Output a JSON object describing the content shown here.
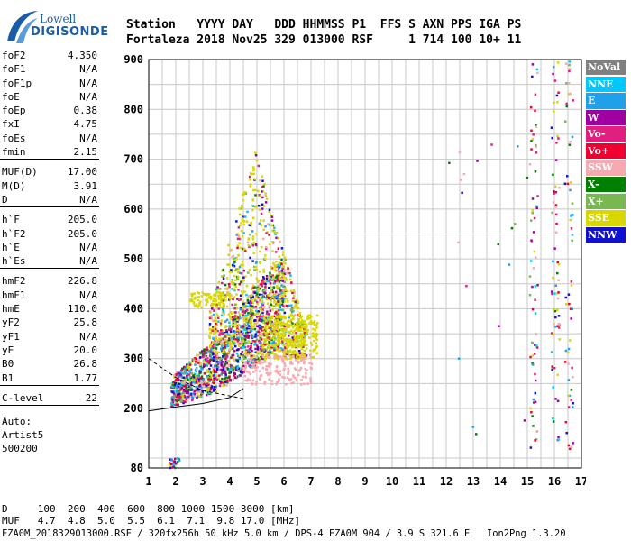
{
  "logo": {
    "line1": "Lowell",
    "line2": "DIGISONDE"
  },
  "header": {
    "line1": "Station   YYYY DAY   DDD HHMMSS P1  FFS S AXN PPS IGA PS",
    "line2": "Fortaleza 2018 Nov25 329 013000 RSF     1 714 100 10+ 11"
  },
  "params": [
    {
      "k": "foF2",
      "v": "4.350"
    },
    {
      "k": "foF1",
      "v": "N/A"
    },
    {
      "k": "foF1p",
      "v": "N/A"
    },
    {
      "k": "foE",
      "v": "N/A"
    },
    {
      "k": "foEp",
      "v": "0.38"
    },
    {
      "k": "fxI",
      "v": "4.75"
    },
    {
      "k": "foEs",
      "v": "N/A"
    },
    {
      "k": "fmin",
      "v": "2.15"
    },
    {
      "sep": true
    },
    {
      "k": "MUF(D)",
      "v": "17.00"
    },
    {
      "k": "M(D)",
      "v": "3.91"
    },
    {
      "k": "D",
      "v": "N/A"
    },
    {
      "sep": true
    },
    {
      "k": "h`F",
      "v": "205.0"
    },
    {
      "k": "h`F2",
      "v": "205.0"
    },
    {
      "k": "h`E",
      "v": "N/A"
    },
    {
      "k": "h`Es",
      "v": "N/A"
    },
    {
      "sep": true
    },
    {
      "k": "hmF2",
      "v": "226.8"
    },
    {
      "k": "hmF1",
      "v": "N/A"
    },
    {
      "k": "hmE",
      "v": "110.0"
    },
    {
      "k": "yF2",
      "v": "25.8"
    },
    {
      "k": "yF1",
      "v": "N/A"
    },
    {
      "k": "yE",
      "v": "20.0"
    },
    {
      "k": "B0",
      "v": "26.8"
    },
    {
      "k": "B1",
      "v": "1.77"
    },
    {
      "sep": true
    },
    {
      "k": "C-level",
      "v": "22"
    },
    {
      "sep": true
    }
  ],
  "auto": {
    "l1": "Auto:",
    "l2": "Artist5",
    "l3": "500200"
  },
  "legend": [
    {
      "label": "NoVal",
      "color": "#808080"
    },
    {
      "label": "NNE",
      "color": "#00c8ff"
    },
    {
      "label": "E",
      "color": "#20a0e8"
    },
    {
      "label": "W",
      "color": "#a000a0"
    },
    {
      "label": "Vo-",
      "color": "#e02080"
    },
    {
      "label": "Vo+",
      "color": "#f00030"
    },
    {
      "label": "SSW",
      "color": "#f8a8b0"
    },
    {
      "label": "X-",
      "color": "#008000"
    },
    {
      "label": "X+",
      "color": "#78b850"
    },
    {
      "label": "SSE",
      "color": "#d8d800"
    },
    {
      "label": "NNW",
      "color": "#1010d0"
    }
  ],
  "chart_data": {
    "type": "scatter",
    "x_ticks": [
      "1",
      "2",
      "3",
      "4",
      "5",
      "6",
      "7",
      "8",
      "9",
      "10",
      "11",
      "12",
      "13",
      "14",
      "15",
      "16",
      "17"
    ],
    "y_ticks": [
      "80",
      "200",
      "300",
      "400",
      "500",
      "600",
      "700",
      "800",
      "900"
    ],
    "xlim": [
      1,
      17
    ],
    "ylim": [
      80,
      900
    ],
    "grid": true,
    "trace_lower": [
      [
        1,
        195
      ],
      [
        2,
        203
      ],
      [
        3,
        210
      ],
      [
        4,
        222
      ],
      [
        4.5,
        240
      ]
    ],
    "trace_upper": [
      [
        1,
        300
      ],
      [
        2,
        262
      ],
      [
        3,
        236
      ],
      [
        4,
        225
      ],
      [
        4.5,
        220
      ]
    ]
  },
  "footer": {
    "line1": "D     100  200  400  600  800 1000 1500 3000 [km]",
    "line2": "MUF   4.7  4.8  5.0  5.5  6.1  7.1  9.8 17.0 [MHz]",
    "line3": "FZA0M_2018329013000.RSF / 320fx256h 50 kHz 5.0 km / DPS-4 FZA0M 904 / 3.9 S 321.6 E   Ion2Png 1.3.20"
  }
}
